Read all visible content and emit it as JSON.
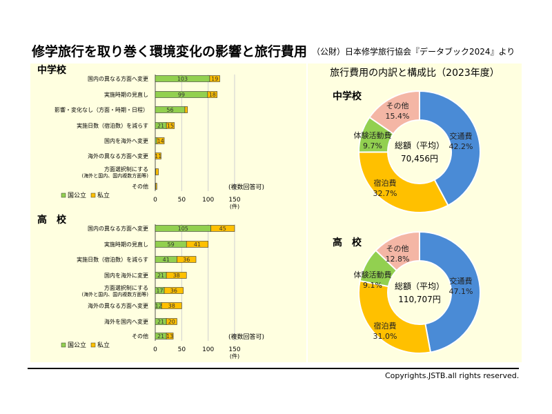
{
  "title": "修学旅行を取り巻く環境変化の影響と旅行費用",
  "source": "（公財）日本修学旅行協会『データブック2024』より",
  "copyright": "Copyrights.JSTB.all rights reserved.",
  "colors": {
    "national_public": "#92d050",
    "private": "#ffc000",
    "transport": "#4a8bd6",
    "lodging": "#ffc000",
    "activity": "#92d050",
    "other": "#f4b6a5",
    "panel": "#ffffe0"
  },
  "chart_data": [
    {
      "type": "bar",
      "orientation": "horizontal",
      "stacked": true,
      "title": "中学校",
      "categories": [
        "国内の異なる方面へ変更",
        "実施時期の見直し",
        "影響・変化なし（方面・時期・日程）",
        "実施日数（宿泊数）を減らす",
        "国内を海外へ変更",
        "海外の異なる方面へ変更",
        "方面選択制にする\n(海外と国内、国内複数方面等)",
        "その他"
      ],
      "series": [
        {
          "name": "国公立",
          "values": [
            103,
            99,
            56,
            21,
            3,
            0,
            1,
            1
          ]
        },
        {
          "name": "私立",
          "values": [
            19,
            18,
            5,
            15,
            14,
            11,
            5,
            2
          ]
        }
      ],
      "data_labels": [
        [
          "103",
          "99",
          "56",
          "21",
          "",
          "",
          "",
          ""
        ],
        [
          "19",
          "18",
          "",
          "15",
          "14",
          "11",
          "",
          ""
        ]
      ],
      "xlim": [
        0,
        150
      ],
      "xticks": [
        "0",
        "50",
        "100",
        "150"
      ],
      "xunit": "(件)",
      "note": "(複数回答可)",
      "legend": "bottom-left"
    },
    {
      "type": "bar",
      "orientation": "horizontal",
      "stacked": true,
      "title": "高　校",
      "categories": [
        "国内の異なる方面へ変更",
        "実施時期の見直し",
        "実施日数（宿泊数）を減らす",
        "国内を海外に変更",
        "方面選択制にする\n(海外と国内、国内複数方面等)",
        "海外の異なる方面へ変更",
        "海外を国内へ変更",
        "その他"
      ],
      "series": [
        {
          "name": "国公立",
          "values": [
            105,
            59,
            41,
            21,
            17,
            12,
            21,
            21
          ]
        },
        {
          "name": "私立",
          "values": [
            45,
            41,
            36,
            38,
            36,
            38,
            20,
            13
          ]
        }
      ],
      "data_labels": [
        [
          "105",
          "59",
          "41",
          "21",
          "17",
          "12",
          "21",
          "21"
        ],
        [
          "45",
          "41",
          "36",
          "38",
          "36",
          "38",
          "20",
          "13"
        ]
      ],
      "xlim": [
        0,
        150
      ],
      "xticks": [
        "0",
        "50",
        "100",
        "150"
      ],
      "xunit": "(件)",
      "note": "(複数回答可)",
      "legend": "bottom-left"
    },
    {
      "type": "pie",
      "donut": true,
      "title": "中学校",
      "categories": [
        "交通費",
        "宿泊費",
        "体験活動費",
        "その他"
      ],
      "values": [
        42.2,
        32.7,
        9.7,
        15.4
      ],
      "labels": [
        "42.2%",
        "32.7%",
        "9.7%",
        "15.4%"
      ],
      "center_label": "総額（平均）",
      "center_value": "70,456円"
    },
    {
      "type": "pie",
      "donut": true,
      "title": "高　校",
      "categories": [
        "交通費",
        "宿泊費",
        "体験活動費",
        "その他"
      ],
      "values": [
        47.1,
        31.0,
        9.1,
        12.8
      ],
      "labels": [
        "47.1%",
        "31.0%",
        "9.1%",
        "12.8%"
      ],
      "center_label": "総額（平均）",
      "center_value": "110,707円"
    }
  ],
  "pie_section_title": "旅行費用の内訳と構成比（2023年度）"
}
